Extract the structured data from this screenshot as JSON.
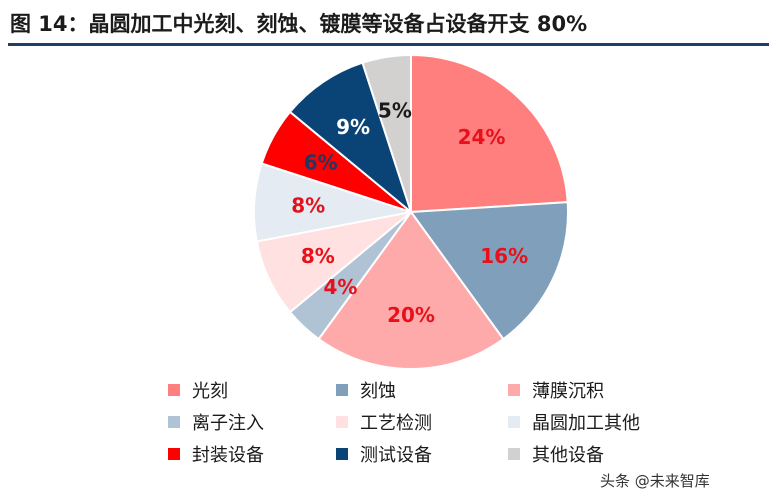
{
  "header": {
    "title": "图 14：晶圆加工中光刻、刻蚀、镀膜等设备占设备开支 80%"
  },
  "chart_data": {
    "type": "pie",
    "title": "",
    "slices": [
      {
        "label": "光刻",
        "value": 24,
        "value_label": "24%",
        "color": "#FF7F7F",
        "label_color": "#E8101A"
      },
      {
        "label": "刻蚀",
        "value": 16,
        "value_label": "16%",
        "color": "#7F9FBA",
        "label_color": "#E8101A"
      },
      {
        "label": "薄膜沉积",
        "value": 20,
        "value_label": "20%",
        "color": "#FFAAAA",
        "label_color": "#E8101A"
      },
      {
        "label": "离子注入",
        "value": 4,
        "value_label": "4%",
        "color": "#AFC3D5",
        "label_color": "#E8101A"
      },
      {
        "label": "工艺检测",
        "value": 8,
        "value_label": "8%",
        "color": "#FFE1E1",
        "label_color": "#E8101A"
      },
      {
        "label": "晶圆加工其他",
        "value": 8,
        "value_label": "8%",
        "color": "#E4EBF2",
        "label_color": "#E8101A"
      },
      {
        "label": "封装设备",
        "value": 6,
        "value_label": "6%",
        "color": "#FF0000",
        "label_color": "#1F3864"
      },
      {
        "label": "测试设备",
        "value": 9,
        "value_label": "9%",
        "color": "#0A4477",
        "label_color": "#FFFFFF"
      },
      {
        "label": "其他设备",
        "value": 5,
        "value_label": "5%",
        "color": "#D3D0D0",
        "label_color": "#1B1B1B"
      }
    ],
    "start_angle_deg": 0,
    "direction": "clockwise",
    "legend_position": "bottom"
  },
  "watermark": {
    "text": "头条 @未来智库"
  }
}
